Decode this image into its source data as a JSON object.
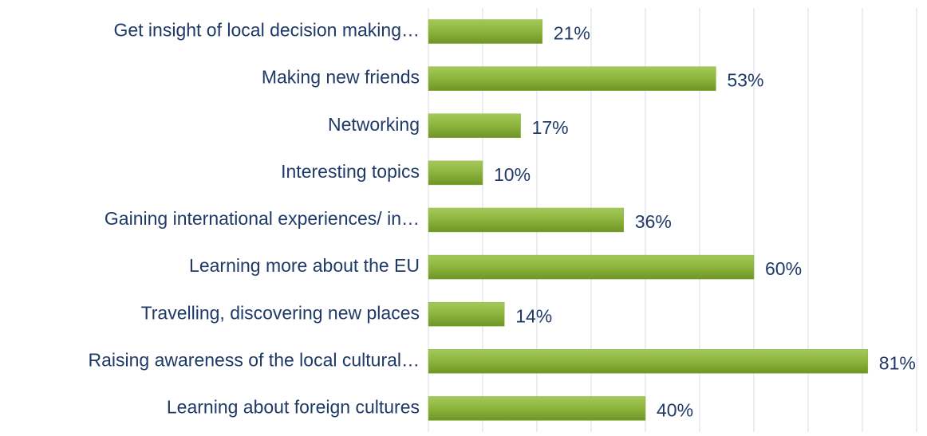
{
  "chart_data": {
    "type": "hbar",
    "categories": [
      "Get insight of local decision making…",
      "Making new friends",
      "Networking",
      "Interesting topics",
      "Gaining international experiences/  in…",
      "Learning more about the EU",
      "Travelling, discovering new places",
      "Raising awareness of the local cultural…",
      "Learning about foreign cultures"
    ],
    "values": [
      21,
      53,
      17,
      10,
      36,
      60,
      14,
      81,
      40
    ],
    "value_labels": [
      "21%",
      "53%",
      "17%",
      "10%",
      "36%",
      "60%",
      "14%",
      "81%",
      "40%"
    ],
    "color": "#8cb43c",
    "xlim": [
      0,
      90
    ],
    "xticks": [
      0,
      10,
      20,
      30,
      40,
      50,
      60,
      70,
      80,
      90
    ],
    "grid": true
  }
}
